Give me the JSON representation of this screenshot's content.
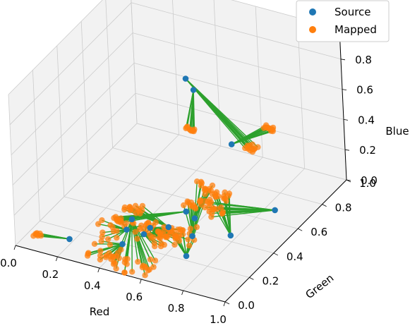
{
  "chart_data": {
    "type": "scatter3d",
    "title": "",
    "xlabel": "Red",
    "ylabel": "Green",
    "zlabel": "Blue",
    "xlim": [
      0,
      1
    ],
    "ylim": [
      0,
      1
    ],
    "zlim": [
      0,
      1
    ],
    "x_ticks": [
      "0.0",
      "0.2",
      "0.4",
      "0.6",
      "0.8",
      "1.0"
    ],
    "y_ticks": [
      "0.0",
      "0.2",
      "0.4",
      "0.6",
      "0.8",
      "1.0"
    ],
    "z_ticks": [
      "0.0",
      "0.2",
      "0.4",
      "0.6",
      "0.8",
      "1.0"
    ],
    "grid": true,
    "legend": {
      "position": "top-right",
      "entries": [
        "Source",
        "Mapped"
      ]
    },
    "colors": {
      "source": "#1f77b4",
      "mapped": "#ff7f0e",
      "line": "#2ca02c",
      "grid": "#cccccc",
      "pane": "#f2f2f2"
    },
    "series": [
      {
        "name": "Source",
        "points": [
          [
            0.33,
            0.92,
            0.41
          ],
          [
            0.76,
            0.5,
            0.55
          ],
          [
            0.58,
            0.41,
            0.11
          ],
          [
            0.59,
            0.25,
            0.14
          ],
          [
            0.85,
            0.67,
            0.01
          ],
          [
            0.5,
            0.2,
            0.1
          ],
          [
            0.47,
            0.16,
            0.22
          ],
          [
            0.43,
            0.18,
            0.12
          ],
          [
            0.47,
            0.3,
            0.05
          ],
          [
            0.7,
            0.2,
            0.03
          ],
          [
            0.48,
            0.06,
            0.14
          ],
          [
            0.25,
            0.02,
            0.12
          ],
          [
            0.27,
            0.96,
            0.43
          ],
          [
            0.62,
            0.41,
            0.08
          ],
          [
            0.79,
            0.41,
            0.03
          ],
          [
            0.66,
            0.32,
            0.05
          ]
        ]
      },
      {
        "name": "Mapped",
        "groups": [
          {
            "source": 0,
            "count": 10,
            "center": [
              0.35,
              0.84,
              0.22
            ],
            "spread": 0.01
          },
          {
            "source": 1,
            "count": 12,
            "center": [
              0.95,
              0.49,
              0.74
            ],
            "spread": 0.01
          },
          {
            "source": 2,
            "count": 10,
            "center": [
              0.35,
              0.23,
              0.12
            ],
            "spread": 0.012
          },
          {
            "source": 3,
            "count": 14,
            "center": [
              0.45,
              0.22,
              0.22
            ],
            "spread": 0.02
          },
          {
            "source": 4,
            "count": 16,
            "center": [
              0.66,
              0.52,
              0.06
            ],
            "spread": 0.025
          },
          {
            "source": 5,
            "count": 24,
            "center": [
              0.52,
              0.22,
              0.1
            ],
            "spread": 0.035
          },
          {
            "source": 6,
            "count": 20,
            "center": [
              0.55,
              0.05,
              0.04
            ],
            "spread": 0.035
          },
          {
            "source": 7,
            "count": 18,
            "center": [
              0.4,
              0.18,
              0.11
            ],
            "spread": 0.04
          },
          {
            "source": 8,
            "count": 20,
            "center": [
              0.58,
              0.28,
              0.07
            ],
            "spread": 0.035
          },
          {
            "source": 9,
            "count": 14,
            "center": [
              0.62,
              0.3,
              0.06
            ],
            "spread": 0.03
          },
          {
            "source": 10,
            "count": 22,
            "center": [
              0.4,
              0.05,
              0.06
            ],
            "spread": 0.035
          },
          {
            "source": 11,
            "count": 8,
            "center": [
              0.08,
              0.04,
              0.07
            ],
            "spread": 0.008
          },
          {
            "source": 12,
            "count": 12,
            "center": [
              0.62,
              0.88,
              0.16
            ],
            "spread": 0.012
          },
          {
            "source": 13,
            "count": 12,
            "center": [
              0.55,
              0.6,
              0.1
            ],
            "spread": 0.02
          },
          {
            "source": 14,
            "count": 14,
            "center": [
              0.63,
              0.6,
              0.08
            ],
            "spread": 0.02
          },
          {
            "source": 15,
            "count": 14,
            "center": [
              0.56,
              0.52,
              0.06
            ],
            "spread": 0.02
          }
        ]
      }
    ]
  }
}
